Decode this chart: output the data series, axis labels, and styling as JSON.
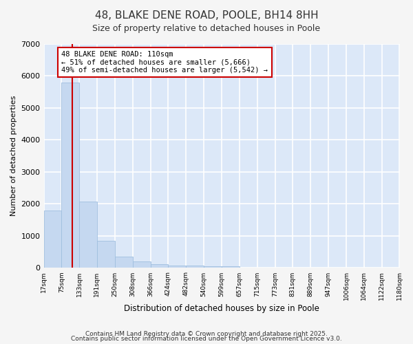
{
  "title": "48, BLAKE DENE ROAD, POOLE, BH14 8HH",
  "subtitle": "Size of property relative to detached houses in Poole",
  "xlabel": "Distribution of detached houses by size in Poole",
  "ylabel": "Number of detached properties",
  "bar_color": "#c5d8f0",
  "bar_edge_color": "#a0bfdf",
  "background_color": "#dce8f8",
  "fig_background_color": "#f5f5f5",
  "grid_color": "#ffffff",
  "bin_edges": [
    17,
    75,
    133,
    191,
    250,
    308,
    366,
    424,
    482,
    540,
    599,
    657,
    715,
    773,
    831,
    889,
    947,
    1006,
    1064,
    1122,
    1180
  ],
  "bin_labels": [
    "17sqm",
    "75sqm",
    "133sqm",
    "191sqm",
    "250sqm",
    "308sqm",
    "366sqm",
    "424sqm",
    "482sqm",
    "540sqm",
    "599sqm",
    "657sqm",
    "715sqm",
    "773sqm",
    "831sqm",
    "889sqm",
    "947sqm",
    "1006sqm",
    "1064sqm",
    "1122sqm",
    "1180sqm"
  ],
  "bar_heights": [
    1800,
    5800,
    2080,
    840,
    360,
    210,
    110,
    85,
    65,
    50,
    45,
    0,
    0,
    0,
    0,
    0,
    0,
    0,
    0,
    0
  ],
  "property_size": 110,
  "red_line_color": "#cc0000",
  "annotation_line1": "48 BLAKE DENE ROAD: 110sqm",
  "annotation_line2": "← 51% of detached houses are smaller (5,666)",
  "annotation_line3": "49% of semi-detached houses are larger (5,542) →",
  "annotation_box_color": "#cc0000",
  "ylim": [
    0,
    7000
  ],
  "yticks": [
    0,
    1000,
    2000,
    3000,
    4000,
    5000,
    6000,
    7000
  ],
  "footer_line1": "Contains HM Land Registry data © Crown copyright and database right 2025.",
  "footer_line2": "Contains public sector information licensed under the Open Government Licence v3.0."
}
